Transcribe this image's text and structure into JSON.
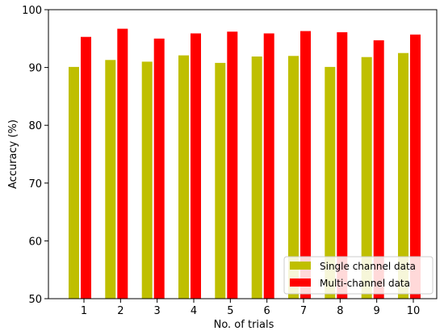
{
  "chart_data": {
    "type": "bar",
    "title": "",
    "xlabel": "No. of trials",
    "ylabel": "Accuracy (%)",
    "categories": [
      "1",
      "2",
      "3",
      "4",
      "5",
      "6",
      "7",
      "8",
      "9",
      "10"
    ],
    "ylim": [
      50,
      100
    ],
    "yticks": [
      50,
      60,
      70,
      80,
      90,
      100
    ],
    "grid": false,
    "legend_position": "bottom-right",
    "series": [
      {
        "name": "Single channel data",
        "color": "#bfbf00",
        "values": [
          90.1,
          91.3,
          91.0,
          92.1,
          90.8,
          91.9,
          92.0,
          90.1,
          91.8,
          92.5
        ]
      },
      {
        "name": "Multi-channel data",
        "color": "#ff0000",
        "values": [
          95.3,
          96.7,
          95.0,
          95.9,
          96.2,
          95.9,
          96.3,
          96.1,
          94.7,
          95.7
        ]
      }
    ]
  }
}
